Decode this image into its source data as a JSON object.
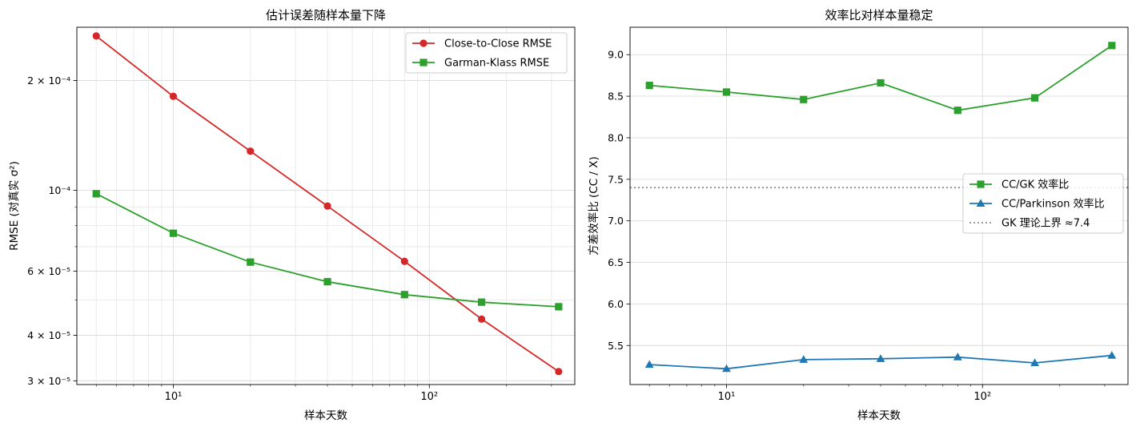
{
  "chart_data": [
    {
      "type": "line",
      "title": "估计误差随样本量下降",
      "xlabel": "样本天数",
      "ylabel": "RMSE (对真实 σ²)",
      "xscale": "log",
      "yscale": "log",
      "xlim": [
        4.2,
        370
      ],
      "ylim": [
        2.93e-05,
        0.00028
      ],
      "x": [
        5,
        10,
        20,
        40,
        80,
        160,
        320
      ],
      "x_ticks": [
        {
          "value": 10,
          "label": "10¹"
        },
        {
          "value": 100,
          "label": "10²"
        }
      ],
      "y_ticks": [
        {
          "value": 0.0002,
          "label": "2 × 10⁻⁴"
        },
        {
          "value": 0.0001,
          "label": "10⁻⁴"
        },
        {
          "value": 6e-05,
          "label": "6 × 10⁻⁵"
        },
        {
          "value": 4e-05,
          "label": "4 × 10⁻⁵"
        },
        {
          "value": 3e-05,
          "label": "3 × 10⁻⁵"
        }
      ],
      "series": [
        {
          "name": "Close-to-Close RMSE",
          "color": "#d62728",
          "marker": "circle",
          "values": [
            0.000265,
            0.000181,
            0.000128,
            9.05e-05,
            6.38e-05,
            4.43e-05,
            3.18e-05
          ]
        },
        {
          "name": "Garman-Klass RMSE",
          "color": "#2ca02c",
          "marker": "square",
          "values": [
            9.78e-05,
            7.62e-05,
            6.35e-05,
            5.61e-05,
            5.17e-05,
            4.93e-05,
            4.79e-05
          ]
        }
      ],
      "grid": true,
      "legend": "top-right"
    },
    {
      "type": "line",
      "title": "效率比对样本量稳定",
      "xlabel": "样本天数",
      "ylabel": "方差效率比 (CC / X)",
      "xscale": "log",
      "xlim": [
        4.2,
        370
      ],
      "ylim": [
        5.03,
        9.33
      ],
      "x": [
        5,
        10,
        20,
        40,
        80,
        160,
        320
      ],
      "x_ticks": [
        {
          "value": 10,
          "label": "10¹"
        },
        {
          "value": 100,
          "label": "10²"
        }
      ],
      "y_ticks": [
        {
          "value": 5.5,
          "label": "5.5"
        },
        {
          "value": 6.0,
          "label": "6.0"
        },
        {
          "value": 6.5,
          "label": "6.5"
        },
        {
          "value": 7.0,
          "label": "7.0"
        },
        {
          "value": 7.5,
          "label": "7.5"
        },
        {
          "value": 8.0,
          "label": "8.0"
        },
        {
          "value": 8.5,
          "label": "8.5"
        },
        {
          "value": 9.0,
          "label": "9.0"
        }
      ],
      "series": [
        {
          "name": "CC/GK 效率比",
          "color": "#2ca02c",
          "marker": "square",
          "values": [
            8.63,
            8.55,
            8.46,
            8.66,
            8.33,
            8.48,
            9.11
          ]
        },
        {
          "name": "CC/Parkinson 效率比",
          "color": "#1f77b4",
          "marker": "triangle",
          "values": [
            5.27,
            5.22,
            5.33,
            5.34,
            5.36,
            5.29,
            5.38
          ]
        }
      ],
      "reference_line": {
        "name": "GK 理论上界 ≈7.4",
        "value": 7.4,
        "color": "#808080",
        "style": "dotted"
      },
      "grid": true,
      "legend": "center-right"
    }
  ]
}
